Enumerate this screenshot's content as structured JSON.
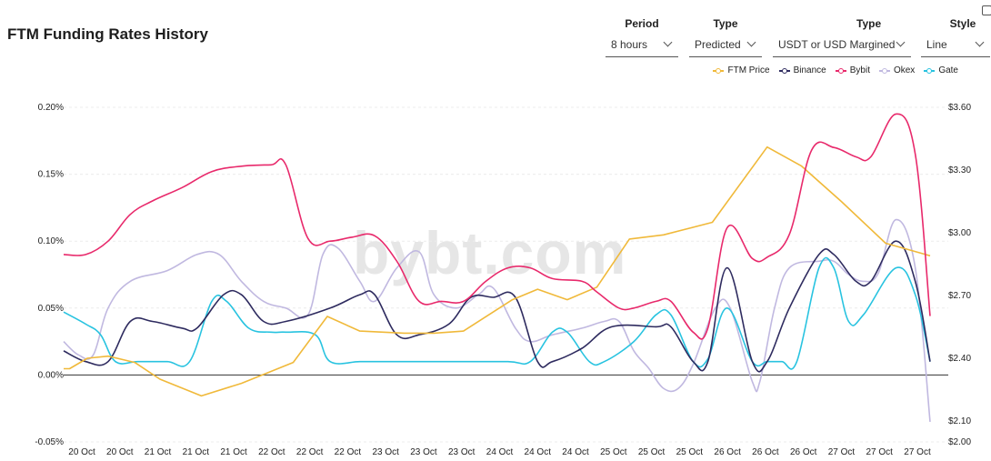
{
  "page": {
    "title": "FTM Funding Rates History"
  },
  "controls": [
    {
      "label": "Period",
      "value": "8 hours"
    },
    {
      "label": "Type",
      "value": "Predicted"
    },
    {
      "label": "Type",
      "value": "USDT or USD Margined"
    },
    {
      "label": "Style",
      "value": "Line"
    }
  ],
  "watermark": "bybt.com",
  "chart_data": {
    "type": "line",
    "title": "FTM Funding Rates History",
    "x": [
      "20 Oct",
      "20 Oct",
      "21 Oct",
      "21 Oct",
      "21 Oct",
      "22 Oct",
      "22 Oct",
      "22 Oct",
      "23 Oct",
      "23 Oct",
      "23 Oct",
      "24 Oct",
      "24 Oct",
      "24 Oct",
      "25 Oct",
      "25 Oct",
      "25 Oct",
      "26 Oct",
      "26 Oct",
      "26 Oct",
      "27 Oct",
      "27 Oct",
      "27 Oct"
    ],
    "y_left": {
      "ticks": [
        "0.20%",
        "0.15%",
        "0.10%",
        "0.05%",
        "0.00%",
        "-0.05%"
      ],
      "ylim": [
        -0.05,
        0.2
      ],
      "unit": "%"
    },
    "y_right": {
      "ticks": [
        "$3.60",
        "$3.30",
        "$3.00",
        "$2.70",
        "$2.40",
        "$2.10",
        "$2.00"
      ],
      "ylim": [
        2.0,
        3.6
      ],
      "unit": "$"
    },
    "grid": "horizontal",
    "legend_position": "top-right",
    "series": [
      {
        "name": "FTM Price",
        "axis": "right",
        "color": "#F0B93A",
        "curve": "linear",
        "points": [
          [
            0,
            2.35
          ],
          [
            0.4,
            2.35
          ],
          [
            1.6,
            2.4
          ],
          [
            3.0,
            2.41
          ],
          [
            4.8,
            2.38
          ],
          [
            6.5,
            2.3
          ],
          [
            9.3,
            2.22
          ],
          [
            12.0,
            2.28
          ],
          [
            15.5,
            2.38
          ],
          [
            17.8,
            2.6
          ],
          [
            20.0,
            2.53
          ],
          [
            23.0,
            2.52
          ],
          [
            25.0,
            2.52
          ],
          [
            27.0,
            2.53
          ],
          [
            30.3,
            2.68
          ],
          [
            32.0,
            2.73
          ],
          [
            34.0,
            2.68
          ],
          [
            36.0,
            2.74
          ],
          [
            38.2,
            2.97
          ],
          [
            40.5,
            2.99
          ],
          [
            43.8,
            3.05
          ],
          [
            47.5,
            3.41
          ],
          [
            49.8,
            3.32
          ],
          [
            52.5,
            3.15
          ],
          [
            55.5,
            2.95
          ],
          [
            57.0,
            2.92
          ],
          [
            58.5,
            2.89
          ]
        ]
      },
      {
        "name": "Binance",
        "axis": "left",
        "color": "#2E2B5F",
        "curve": "smooth",
        "points": [
          [
            0,
            0.018
          ],
          [
            1.5,
            0.01
          ],
          [
            3.0,
            0.01
          ],
          [
            4.5,
            0.04
          ],
          [
            6.0,
            0.04
          ],
          [
            8.0,
            0.035
          ],
          [
            9.0,
            0.035
          ],
          [
            10.8,
            0.06
          ],
          [
            12.0,
            0.06
          ],
          [
            13.5,
            0.04
          ],
          [
            15.0,
            0.04
          ],
          [
            18.0,
            0.05
          ],
          [
            20.0,
            0.06
          ],
          [
            21.0,
            0.06
          ],
          [
            22.5,
            0.03
          ],
          [
            24.0,
            0.03
          ],
          [
            26.0,
            0.038
          ],
          [
            27.5,
            0.058
          ],
          [
            29.0,
            0.058
          ],
          [
            30.5,
            0.058
          ],
          [
            32.0,
            0.01
          ],
          [
            33.0,
            0.01
          ],
          [
            35.0,
            0.02
          ],
          [
            37.0,
            0.036
          ],
          [
            40.0,
            0.036
          ],
          [
            41.0,
            0.036
          ],
          [
            42.5,
            0.01
          ],
          [
            43.5,
            0.01
          ],
          [
            44.8,
            0.08
          ],
          [
            46.5,
            0.01
          ],
          [
            47.5,
            0.01
          ],
          [
            49.0,
            0.05
          ],
          [
            51.0,
            0.09
          ],
          [
            52.0,
            0.09
          ],
          [
            53.5,
            0.07
          ],
          [
            54.5,
            0.07
          ],
          [
            56.2,
            0.1
          ],
          [
            57.5,
            0.07
          ],
          [
            58.5,
            0.01
          ]
        ]
      },
      {
        "name": "Bybit",
        "axis": "left",
        "color": "#E8296B",
        "curve": "smooth",
        "points": [
          [
            0,
            0.09
          ],
          [
            1.5,
            0.09
          ],
          [
            3.0,
            0.1
          ],
          [
            4.5,
            0.12
          ],
          [
            6.0,
            0.13
          ],
          [
            8.0,
            0.14
          ],
          [
            10.0,
            0.152
          ],
          [
            12.0,
            0.156
          ],
          [
            14.0,
            0.157
          ],
          [
            15.0,
            0.157
          ],
          [
            16.5,
            0.102
          ],
          [
            18.0,
            0.1
          ],
          [
            19.5,
            0.103
          ],
          [
            21.0,
            0.104
          ],
          [
            22.5,
            0.085
          ],
          [
            24.0,
            0.055
          ],
          [
            25.5,
            0.055
          ],
          [
            27.0,
            0.055
          ],
          [
            28.5,
            0.07
          ],
          [
            30.0,
            0.08
          ],
          [
            31.5,
            0.08
          ],
          [
            33.0,
            0.072
          ],
          [
            35.0,
            0.07
          ],
          [
            36.0,
            0.062
          ],
          [
            37.5,
            0.05
          ],
          [
            38.5,
            0.05
          ],
          [
            40.0,
            0.055
          ],
          [
            41.0,
            0.055
          ],
          [
            42.5,
            0.032
          ],
          [
            43.5,
            0.035
          ],
          [
            44.8,
            0.11
          ],
          [
            46.5,
            0.087
          ],
          [
            47.5,
            0.088
          ],
          [
            49.0,
            0.105
          ],
          [
            50.5,
            0.168
          ],
          [
            52.0,
            0.17
          ],
          [
            53.5,
            0.163
          ],
          [
            54.5,
            0.163
          ],
          [
            56.2,
            0.195
          ],
          [
            57.5,
            0.165
          ],
          [
            58.5,
            0.044
          ]
        ]
      },
      {
        "name": "Okex",
        "axis": "left",
        "color": "#C0B8E0",
        "curve": "smooth",
        "points": [
          [
            0,
            0.025
          ],
          [
            1.0,
            0.015
          ],
          [
            2.0,
            0.015
          ],
          [
            3.0,
            0.05
          ],
          [
            4.5,
            0.07
          ],
          [
            7.0,
            0.078
          ],
          [
            9.0,
            0.09
          ],
          [
            10.5,
            0.09
          ],
          [
            12.0,
            0.07
          ],
          [
            13.5,
            0.055
          ],
          [
            15.0,
            0.05
          ],
          [
            16.5,
            0.045
          ],
          [
            17.5,
            0.09
          ],
          [
            18.5,
            0.095
          ],
          [
            20.0,
            0.07
          ],
          [
            21.0,
            0.055
          ],
          [
            22.5,
            0.08
          ],
          [
            24.0,
            0.092
          ],
          [
            25.0,
            0.06
          ],
          [
            26.5,
            0.05
          ],
          [
            28.0,
            0.06
          ],
          [
            29.0,
            0.065
          ],
          [
            30.5,
            0.035
          ],
          [
            31.5,
            0.025
          ],
          [
            33.0,
            0.03
          ],
          [
            35.0,
            0.035
          ],
          [
            36.5,
            0.04
          ],
          [
            37.5,
            0.04
          ],
          [
            38.5,
            0.018
          ],
          [
            39.5,
            0.005
          ],
          [
            40.5,
            -0.01
          ],
          [
            41.5,
            -0.01
          ],
          [
            42.5,
            0.008
          ],
          [
            44.0,
            0.05
          ],
          [
            45.0,
            0.05
          ],
          [
            46.5,
            -0.005
          ],
          [
            47.0,
            -0.005
          ],
          [
            48.0,
            0.05
          ],
          [
            49.0,
            0.08
          ],
          [
            51.0,
            0.085
          ],
          [
            52.0,
            0.085
          ],
          [
            53.0,
            0.075
          ],
          [
            54.0,
            0.07
          ],
          [
            55.0,
            0.076
          ],
          [
            56.2,
            0.116
          ],
          [
            57.5,
            0.08
          ],
          [
            58.5,
            -0.035
          ]
        ]
      },
      {
        "name": "Gate",
        "axis": "left",
        "color": "#28C3E0",
        "curve": "smooth",
        "points": [
          [
            0,
            0.047
          ],
          [
            1.5,
            0.038
          ],
          [
            2.5,
            0.03
          ],
          [
            3.5,
            0.01
          ],
          [
            5.0,
            0.01
          ],
          [
            7.0,
            0.01
          ],
          [
            8.5,
            0.01
          ],
          [
            10.0,
            0.055
          ],
          [
            11.0,
            0.055
          ],
          [
            12.5,
            0.035
          ],
          [
            14.0,
            0.032
          ],
          [
            15.0,
            0.032
          ],
          [
            17.0,
            0.03
          ],
          [
            18.0,
            0.01
          ],
          [
            20.0,
            0.01
          ],
          [
            22.0,
            0.01
          ],
          [
            26.0,
            0.01
          ],
          [
            30.0,
            0.01
          ],
          [
            31.5,
            0.01
          ],
          [
            33.0,
            0.032
          ],
          [
            34.0,
            0.032
          ],
          [
            35.5,
            0.01
          ],
          [
            36.5,
            0.01
          ],
          [
            38.5,
            0.025
          ],
          [
            40.0,
            0.045
          ],
          [
            41.0,
            0.045
          ],
          [
            42.5,
            0.01
          ],
          [
            43.5,
            0.012
          ],
          [
            44.8,
            0.05
          ],
          [
            46.5,
            0.01
          ],
          [
            47.5,
            0.01
          ],
          [
            48.5,
            0.01
          ],
          [
            49.5,
            0.01
          ],
          [
            51.0,
            0.08
          ],
          [
            52.0,
            0.08
          ],
          [
            53.0,
            0.04
          ],
          [
            54.0,
            0.045
          ],
          [
            56.2,
            0.08
          ],
          [
            57.5,
            0.06
          ],
          [
            58.5,
            0.01
          ]
        ]
      }
    ]
  }
}
